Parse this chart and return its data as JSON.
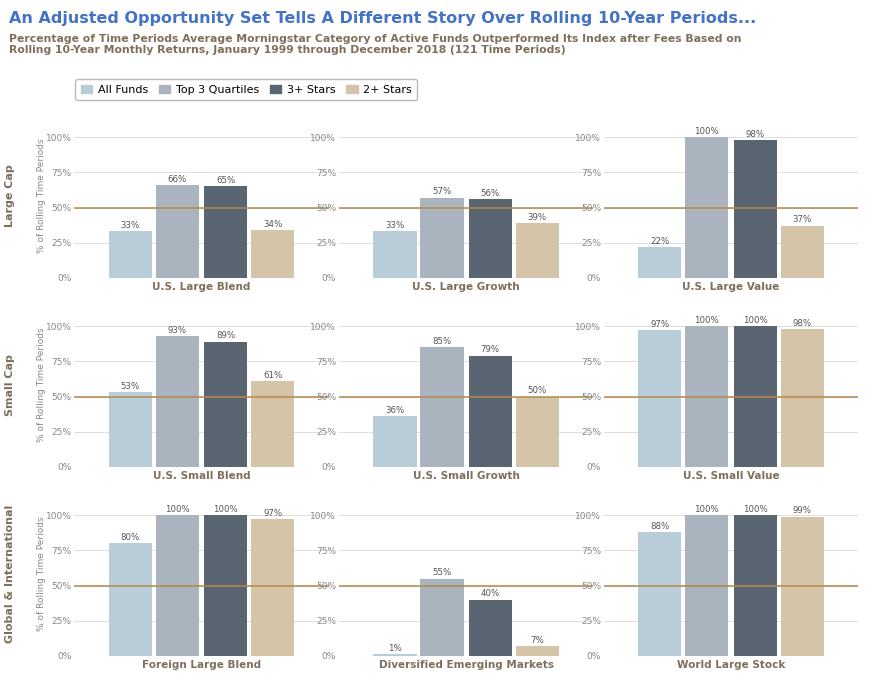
{
  "title": "An Adjusted Opportunity Set Tells A Different Story Over Rolling 10-Year Periods...",
  "subtitle": "Percentage of Time Periods Average Morningstar Category of Active Funds Outperformed Its Index after Fees Based on\nRolling 10-Year Monthly Returns, January 1999 through December 2018 (121 Time Periods)",
  "title_color": "#4472c4",
  "subtitle_color": "#7f6f5a",
  "legend_labels": [
    "All Funds",
    "Top 3 Quartiles",
    "3+ Stars",
    "2+ Stars"
  ],
  "bar_colors": [
    "#b8cdd8",
    "#aab4be",
    "#596672",
    "#d4c4a8"
  ],
  "row_labels": [
    "Large Cap",
    "Small Cap",
    "Global & International"
  ],
  "charts": [
    {
      "title": "U.S. Large Blend",
      "values": [
        33,
        66,
        65,
        34
      ],
      "row": 0,
      "col": 0
    },
    {
      "title": "U.S. Large Growth",
      "values": [
        33,
        57,
        56,
        39
      ],
      "row": 0,
      "col": 1
    },
    {
      "title": "U.S. Large Value",
      "values": [
        22,
        100,
        98,
        37
      ],
      "row": 0,
      "col": 2
    },
    {
      "title": "U.S. Small Blend",
      "values": [
        53,
        93,
        89,
        61
      ],
      "row": 1,
      "col": 0
    },
    {
      "title": "U.S. Small Growth",
      "values": [
        36,
        85,
        79,
        50
      ],
      "row": 1,
      "col": 1
    },
    {
      "title": "U.S. Small Value",
      "values": [
        97,
        100,
        100,
        98
      ],
      "row": 1,
      "col": 2
    },
    {
      "title": "Foreign Large Blend",
      "values": [
        80,
        100,
        100,
        97
      ],
      "row": 2,
      "col": 0
    },
    {
      "title": "Diversified Emerging Markets",
      "values": [
        1,
        55,
        40,
        7
      ],
      "row": 2,
      "col": 1
    },
    {
      "title": "World Large Stock",
      "values": [
        88,
        100,
        100,
        99
      ],
      "row": 2,
      "col": 2
    }
  ],
  "hline_y": 50,
  "hline_color": "#b5874a",
  "yticks": [
    0,
    25,
    50,
    75,
    100
  ],
  "yticklabels": [
    "0%",
    "25%",
    "50%",
    "75%",
    "100%"
  ],
  "background_color": "#ffffff",
  "grid_color": "#d8d8d8",
  "label_color": "#888888",
  "value_label_color": "#555555"
}
